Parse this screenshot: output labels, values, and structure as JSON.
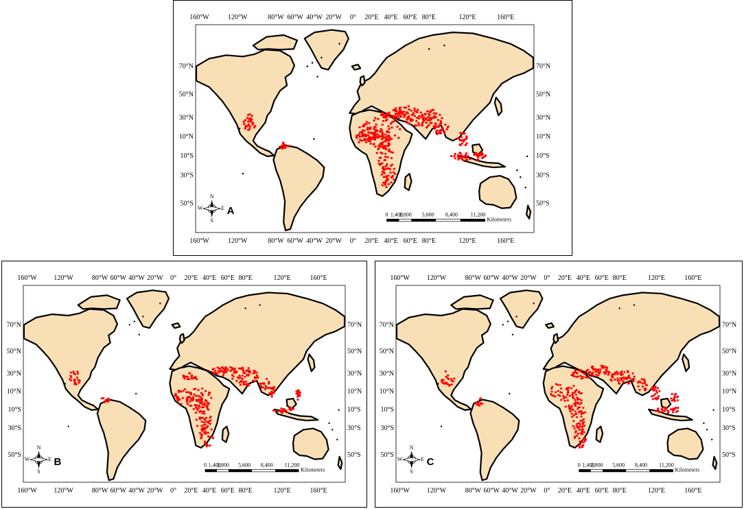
{
  "colors": {
    "land": "#F9DFB5",
    "coast": "#000000",
    "points": "#FF0000",
    "sea": "#FFFFFF"
  },
  "top_lon_labels": [
    "160°W",
    "120°W",
    "80°W",
    "60°W",
    "40°W",
    "20°W",
    "0°",
    "20°E",
    "40°E",
    "60°E",
    "80°E",
    "120°E",
    "160°E"
  ],
  "bottom_lon_labels": [
    "160°W",
    "120°W",
    "80°W",
    "60°W",
    "40°W",
    "20°W",
    "0°",
    "20°E",
    "40°E",
    "60°E",
    "80°E",
    "120°E",
    "160°E"
  ],
  "lat_labels": [
    "70°N",
    "50°N",
    "30°N",
    "10°N",
    "10°S",
    "30°S",
    "50°S"
  ],
  "scale_bar": {
    "ticks": [
      "0",
      "1,400",
      "2,800",
      "5,600",
      "8,400",
      "11,200"
    ],
    "unit": "Kilometers"
  },
  "compass": {
    "icon": "north-arrow-compass-icon",
    "letters": [
      "N",
      "E",
      "S",
      "W"
    ]
  },
  "panels": [
    {
      "id": "a",
      "label": "A"
    },
    {
      "id": "b",
      "label": "B"
    },
    {
      "id": "c",
      "label": "C"
    }
  ]
}
